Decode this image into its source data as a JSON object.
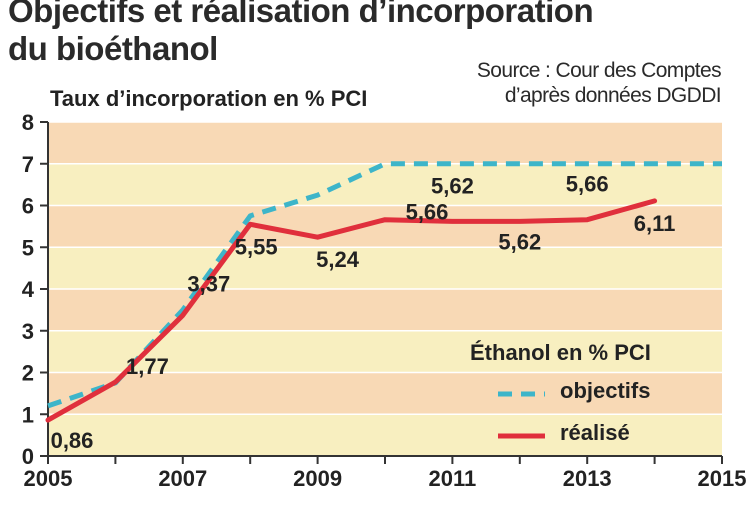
{
  "title_line1": "Objectifs et réalisation d’incorporation",
  "title_line2": "du bioéthanol",
  "source_line1": "Source : Cour des Comptes",
  "source_line2": "d’après données DGDDI",
  "colors": {
    "band_a": "#f8d9b5",
    "band_b": "#f8efc0",
    "objectifs": "#3db5c9",
    "realise": "#e02f3c"
  },
  "chart_data": {
    "type": "line",
    "title": "Objectifs et réalisation d’incorporation du bioéthanol",
    "ylabel": "Taux d’incorporation en % PCI",
    "xlabel": "",
    "xlim": [
      2005,
      2015
    ],
    "ylim": [
      0,
      8
    ],
    "x_ticks": [
      2005,
      2007,
      2009,
      2011,
      2013,
      2015
    ],
    "y_ticks": [
      0,
      1,
      2,
      3,
      4,
      5,
      6,
      7,
      8
    ],
    "legend_title": "Éthanol en % PCI",
    "legend_position": "bottom-right",
    "series": [
      {
        "name": "objectifs",
        "style": "dashed",
        "points": [
          [
            2005,
            1.2
          ],
          [
            2006,
            1.75
          ],
          [
            2007,
            3.5
          ],
          [
            2008,
            5.75
          ],
          [
            2009,
            6.25
          ],
          [
            2010,
            7.0
          ],
          [
            2011,
            7.0
          ],
          [
            2012,
            7.0
          ],
          [
            2013,
            7.0
          ],
          [
            2014,
            7.0
          ],
          [
            2015,
            7.0
          ]
        ]
      },
      {
        "name": "réalisé",
        "style": "solid",
        "points": [
          [
            2005,
            0.86
          ],
          [
            2006,
            1.77
          ],
          [
            2007,
            3.37
          ],
          [
            2008,
            5.55
          ],
          [
            2009,
            5.24
          ],
          [
            2010,
            5.66
          ],
          [
            2011,
            5.62
          ],
          [
            2012,
            5.62
          ],
          [
            2013,
            5.66
          ],
          [
            2014,
            6.11
          ]
        ]
      }
    ],
    "data_labels": [
      {
        "text": "0,86",
        "x": 2005,
        "y": 0.86
      },
      {
        "text": "1,77",
        "x": 2006,
        "y": 1.77
      },
      {
        "text": "3,37",
        "x": 2007,
        "y": 3.37
      },
      {
        "text": "5,55",
        "x": 2008,
        "y": 5.55
      },
      {
        "text": "5,24",
        "x": 2009,
        "y": 5.24
      },
      {
        "text": "5,66",
        "x": 2010,
        "y": 5.66
      },
      {
        "text": "5,62",
        "x": 2011,
        "y": 5.62
      },
      {
        "text": "5,62",
        "x": 2012,
        "y": 5.62
      },
      {
        "text": "5,66",
        "x": 2013,
        "y": 5.66
      },
      {
        "text": "6,11",
        "x": 2014,
        "y": 6.11
      }
    ]
  }
}
